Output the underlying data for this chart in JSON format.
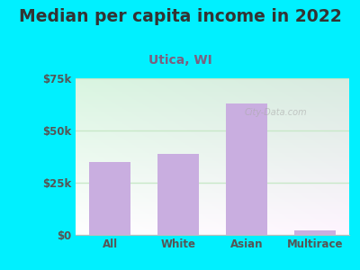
{
  "title": "Median per capita income in 2022",
  "subtitle": "Utica, WI",
  "categories": [
    "All",
    "White",
    "Asian",
    "Multirace"
  ],
  "values": [
    35000,
    39000,
    63000,
    2000
  ],
  "bar_color": "#c9aee0",
  "ylim": [
    0,
    75000
  ],
  "yticks": [
    0,
    25000,
    50000,
    75000
  ],
  "ytick_labels": [
    "$0",
    "$25k",
    "$50k",
    "$75k"
  ],
  "title_fontsize": 13.5,
  "subtitle_fontsize": 10,
  "background_outer": "#00f0ff",
  "background_inner_left": "#d6f0d0",
  "background_inner_right": "#f0f8f0",
  "background_inner_bottom": "#ffffff",
  "watermark": "City-Data.com",
  "title_color": "#333333",
  "subtitle_color": "#7a6080",
  "tick_label_color": "#555555",
  "grid_color": "#c8e8c8"
}
